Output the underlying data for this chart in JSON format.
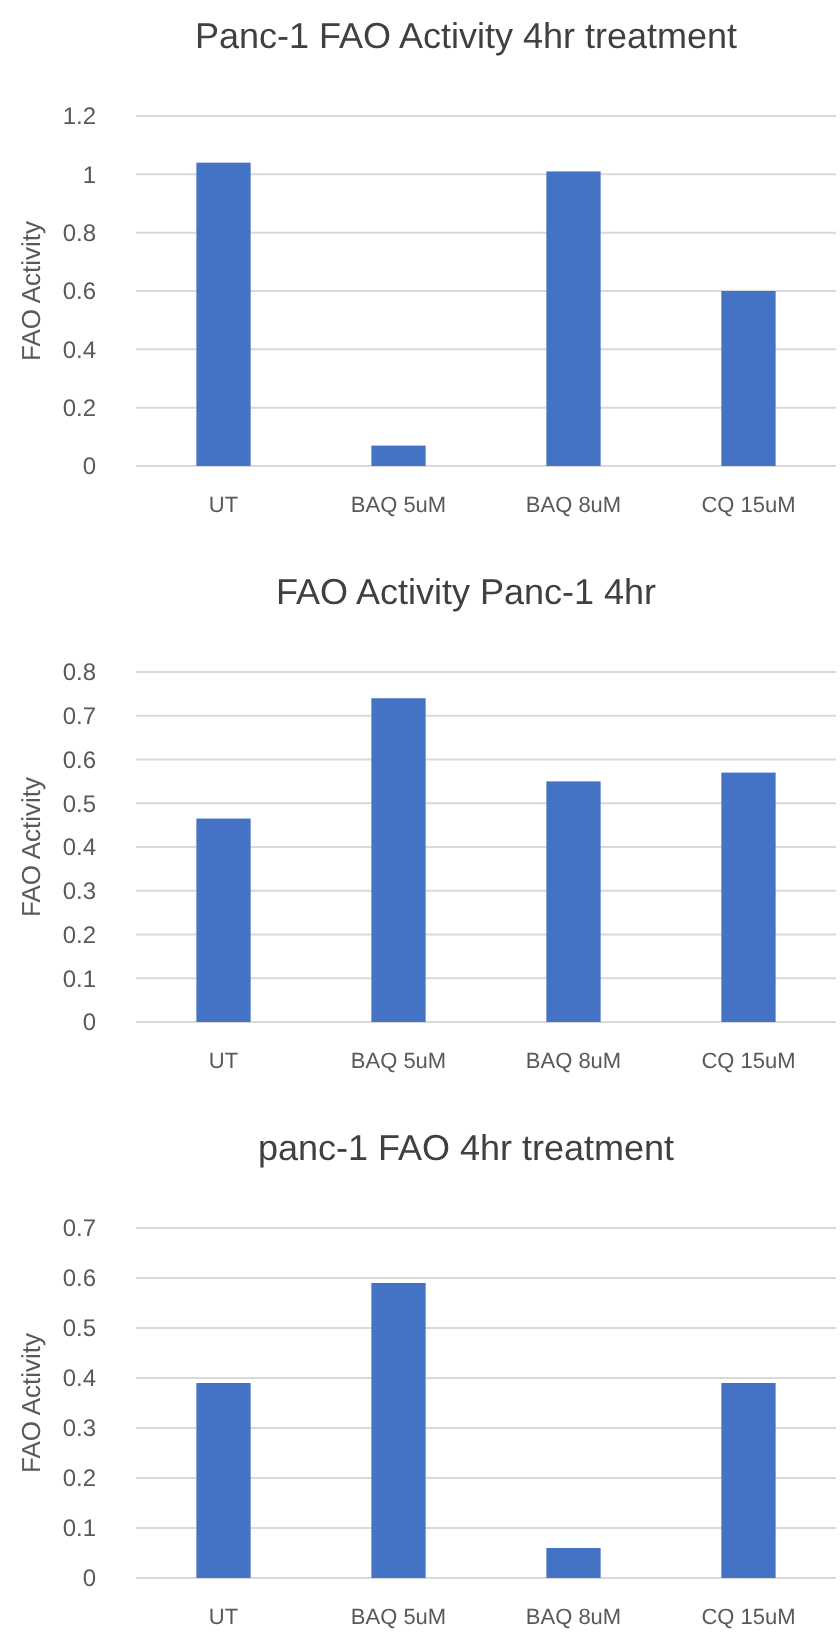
{
  "chart_data": [
    {
      "type": "bar",
      "title": "Panc-1 FAO Activity 4hr treatment",
      "ylabel": "FAO Activity",
      "categories": [
        "UT",
        "BAQ 5uM",
        "BAQ 8uM",
        "CQ 15uM"
      ],
      "values": [
        1.04,
        0.07,
        1.01,
        0.6
      ],
      "color": "#4472c4",
      "ylim": [
        0,
        1.2
      ],
      "yticks": [
        0,
        0.2,
        0.4,
        0.6,
        0.8,
        1,
        1.2
      ],
      "grid": "y"
    },
    {
      "type": "bar",
      "title": "FAO Activity Panc-1 4hr",
      "ylabel": "FAO Activity",
      "categories": [
        "UT",
        "BAQ 5uM",
        "BAQ 8uM",
        "CQ 15uM"
      ],
      "values": [
        0.465,
        0.74,
        0.55,
        0.57
      ],
      "color": "#4472c4",
      "ylim": [
        0,
        0.8
      ],
      "yticks": [
        0,
        0.1,
        0.2,
        0.3,
        0.4,
        0.5,
        0.6,
        0.7,
        0.8
      ],
      "grid": "y"
    },
    {
      "type": "bar",
      "title": "panc-1 FAO 4hr treatment",
      "ylabel": "FAO Activity",
      "categories": [
        "UT",
        "BAQ 5uM",
        "BAQ 8uM",
        "CQ 15uM"
      ],
      "values": [
        0.39,
        0.59,
        0.06,
        0.39
      ],
      "color": "#4472c4",
      "ylim": [
        0,
        0.7
      ],
      "yticks": [
        0,
        0.1,
        0.2,
        0.3,
        0.4,
        0.5,
        0.6,
        0.7
      ],
      "grid": "y"
    }
  ]
}
